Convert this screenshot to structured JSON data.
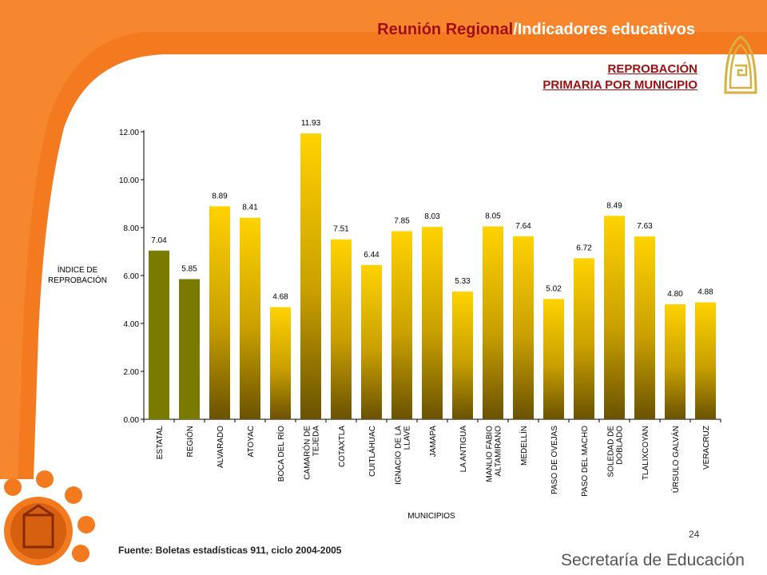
{
  "header": {
    "title_part1": "Reunión Regional",
    "title_part2": "/Indicadores educativos"
  },
  "subtitle": {
    "line1": "REPROBACIÓN",
    "line2": "PRIMARIA POR MUNICIPIO"
  },
  "footer": {
    "page_number": "24",
    "source": "Fuente: Boletas estadísticas 911, ciclo 2004-2005",
    "brand": "Secretaría de Educación"
  },
  "colors": {
    "accent_orange": "#f47a20",
    "title_red": "#a01010",
    "bar_reference": "#7a7a00",
    "bar_gold_top": "#ffd200",
    "bar_gold_bottom": "#6a5200"
  },
  "chart_data": {
    "type": "bar",
    "ylabel": "ÍNDICE DE REPROBACIÓN",
    "ylabel_lines": [
      "ÍNDICE DE",
      "REPROBACIÓN"
    ],
    "xlabel": "MUNICIPIOS",
    "ylim": [
      0,
      12
    ],
    "yticks": [
      "0.00",
      "2.00",
      "4.00",
      "6.00",
      "8.00",
      "10.00",
      "12.00"
    ],
    "grid": false,
    "categories": [
      [
        "ESTATAL"
      ],
      [
        "REGIÓN"
      ],
      [
        "ALVARADO"
      ],
      [
        "ATOYAC"
      ],
      [
        "BOCA DEL RÍO"
      ],
      [
        "CAMARÓN DE",
        "TEJEDA"
      ],
      [
        "COTAXTLA"
      ],
      [
        "CUITLÁHUAC"
      ],
      [
        "IGNACIO DE LA",
        "LLAVE"
      ],
      [
        "JAMAPA"
      ],
      [
        "LA ANTIGUA"
      ],
      [
        "MANLIO FABIO",
        "ALTAMIRANO"
      ],
      [
        "MEDELLÍN"
      ],
      [
        "PASO DE OVEJAS"
      ],
      [
        "PASO DEL MACHO"
      ],
      [
        "SOLEDAD DE",
        "DOBLADO"
      ],
      [
        "TLALIXCOYAN"
      ],
      [
        "ÚRSULO GALVÁN"
      ],
      [
        "VERACRUZ"
      ]
    ],
    "values": [
      7.04,
      5.85,
      8.89,
      8.41,
      4.68,
      11.93,
      7.51,
      6.44,
      7.85,
      8.03,
      5.33,
      8.05,
      7.64,
      5.02,
      6.72,
      8.49,
      7.63,
      4.8,
      4.88
    ],
    "value_labels": [
      "7.04",
      "5.85",
      "8.89",
      "8.41",
      "4.68",
      "11.93",
      "7.51",
      "6.44",
      "7.85",
      "8.03",
      "5.33",
      "8.05",
      "7.64",
      "5.02",
      "6.72",
      "8.49",
      "7.63",
      "4.80",
      "4.88"
    ],
    "reference_bar_count": 2
  }
}
